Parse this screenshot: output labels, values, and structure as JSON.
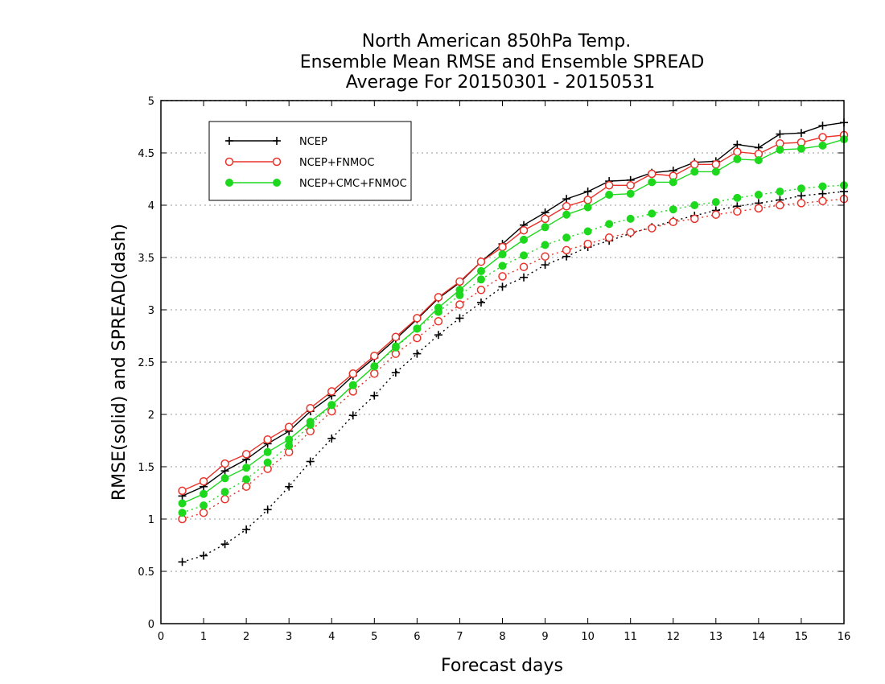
{
  "chart_data": {
    "type": "line",
    "title": [
      "North American 850hPa Temp.",
      "Ensemble Mean RMSE and Ensemble SPREAD",
      "Average For 20150301 - 20150531"
    ],
    "xlabel": "Forecast days",
    "ylabel": "RMSE(solid) and SPREAD(dash)",
    "xlim": [
      0,
      16
    ],
    "ylim": [
      0,
      5
    ],
    "xticks": [
      0,
      1,
      2,
      3,
      4,
      5,
      6,
      7,
      8,
      9,
      10,
      11,
      12,
      13,
      14,
      15,
      16
    ],
    "yticks": [
      0,
      0.5,
      1,
      1.5,
      2,
      2.5,
      3,
      3.5,
      4,
      4.5,
      5
    ],
    "ygrid": true,
    "legend_position": "top-left",
    "x": [
      0.5,
      1,
      1.5,
      2,
      2.5,
      3,
      3.5,
      4,
      4.5,
      5,
      5.5,
      6,
      6.5,
      7,
      7.5,
      8,
      8.5,
      9,
      9.5,
      10,
      10.5,
      11,
      11.5,
      12,
      12.5,
      13,
      13.5,
      14,
      14.5,
      15,
      15.5,
      16
    ],
    "series": [
      {
        "name": "NCEP",
        "color": "#000000",
        "marker": "plus",
        "rmse": [
          1.22,
          1.31,
          1.46,
          1.57,
          1.72,
          1.84,
          2.03,
          2.18,
          2.37,
          2.54,
          2.72,
          2.91,
          3.11,
          3.26,
          3.46,
          3.63,
          3.81,
          3.93,
          4.06,
          4.13,
          4.23,
          4.24,
          4.31,
          4.33,
          4.41,
          4.42,
          4.58,
          4.55,
          4.68,
          4.69,
          4.76,
          4.79
        ],
        "spread": [
          0.59,
          0.65,
          0.76,
          0.9,
          1.09,
          1.31,
          1.55,
          1.77,
          1.99,
          2.18,
          2.4,
          2.58,
          2.76,
          2.92,
          3.07,
          3.22,
          3.31,
          3.43,
          3.51,
          3.6,
          3.66,
          3.73,
          3.79,
          3.85,
          3.9,
          3.95,
          3.99,
          4.02,
          4.05,
          4.09,
          4.11,
          4.13
        ]
      },
      {
        "name": "NCEP+FNMOC",
        "color": "#e8332a",
        "marker": "open-circle",
        "rmse": [
          1.27,
          1.36,
          1.53,
          1.62,
          1.76,
          1.88,
          2.06,
          2.22,
          2.39,
          2.56,
          2.74,
          2.92,
          3.12,
          3.27,
          3.46,
          3.6,
          3.76,
          3.87,
          3.99,
          4.05,
          4.19,
          4.19,
          4.3,
          4.28,
          4.39,
          4.39,
          4.51,
          4.49,
          4.59,
          4.6,
          4.65,
          4.67
        ],
        "spread": [
          1.0,
          1.06,
          1.19,
          1.31,
          1.48,
          1.64,
          1.84,
          2.03,
          2.22,
          2.39,
          2.58,
          2.73,
          2.89,
          3.05,
          3.19,
          3.32,
          3.41,
          3.51,
          3.57,
          3.63,
          3.69,
          3.74,
          3.78,
          3.84,
          3.87,
          3.91,
          3.94,
          3.97,
          4.0,
          4.02,
          4.04,
          4.06
        ]
      },
      {
        "name": "NCEP+CMC+FNMOC",
        "color": "#1ed81e",
        "marker": "filled-circle",
        "rmse": [
          1.15,
          1.24,
          1.39,
          1.49,
          1.64,
          1.76,
          1.93,
          2.09,
          2.28,
          2.46,
          2.65,
          2.82,
          3.02,
          3.19,
          3.37,
          3.53,
          3.67,
          3.79,
          3.91,
          3.98,
          4.1,
          4.11,
          4.22,
          4.22,
          4.32,
          4.32,
          4.44,
          4.43,
          4.53,
          4.54,
          4.57,
          4.63
        ],
        "spread": [
          1.06,
          1.13,
          1.26,
          1.38,
          1.54,
          1.7,
          1.9,
          2.09,
          2.28,
          2.46,
          2.64,
          2.82,
          2.98,
          3.14,
          3.29,
          3.42,
          3.52,
          3.62,
          3.69,
          3.75,
          3.82,
          3.87,
          3.92,
          3.96,
          4.0,
          4.03,
          4.07,
          4.1,
          4.13,
          4.16,
          4.18,
          4.19
        ]
      }
    ]
  }
}
